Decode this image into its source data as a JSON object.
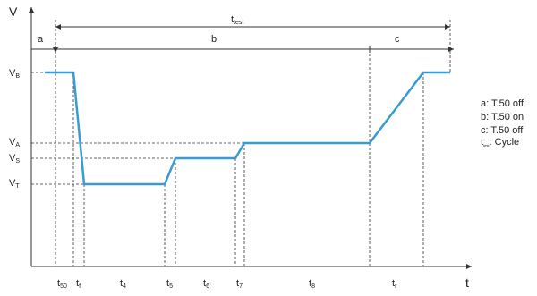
{
  "axis": {
    "y_label": "V",
    "x_label": "t"
  },
  "levels": [
    {
      "main": "V",
      "sub": "B"
    },
    {
      "main": "V",
      "sub": "A"
    },
    {
      "main": "V",
      "sub": "S"
    },
    {
      "main": "V",
      "sub": "T"
    }
  ],
  "t_test": {
    "main": "t",
    "sub": "test"
  },
  "phases": [
    "a",
    "b",
    "c"
  ],
  "intervals": [
    {
      "main": "t",
      "sub": "50"
    },
    {
      "main": "t",
      "sub": "f"
    },
    {
      "main": "t",
      "sub": "4"
    },
    {
      "main": "t",
      "sub": "5"
    },
    {
      "main": "t",
      "sub": "6"
    },
    {
      "main": "t",
      "sub": "7"
    },
    {
      "main": "t",
      "sub": "8"
    },
    {
      "main": "t",
      "sub": "r"
    }
  ],
  "legend": [
    "a: T.50 off",
    "b: T.50 on",
    "c: T.50 off",
    {
      "main": "t",
      "sub": "test",
      "text": ": Cycle"
    }
  ]
}
